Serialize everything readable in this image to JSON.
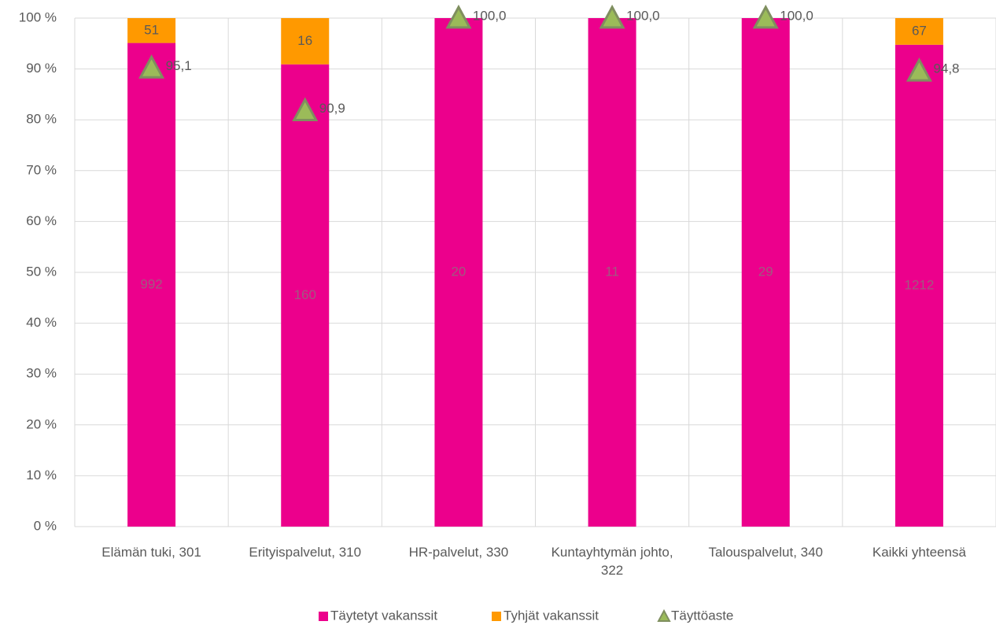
{
  "chart_data": {
    "type": "percent_stacked_bar",
    "categories": [
      "Elämän tuki, 301",
      "Erityispalvelut, 310",
      "HR-palvelut, 330",
      "Kuntayhtymän johto, 322",
      "Talouspalvelut, 340",
      "Kaikki yhteensä"
    ],
    "series": [
      {
        "name": "Täytetyt vakanssit",
        "color": "#ec008c",
        "values": [
          992,
          160,
          20,
          11,
          29,
          1212
        ]
      },
      {
        "name": "Tyhjät vakanssit",
        "color": "#ff9900",
        "values": [
          51,
          16,
          0,
          0,
          0,
          67
        ]
      },
      {
        "name": "Täyttöaste",
        "color": "#9bbb59",
        "type": "marker",
        "axis": "y2",
        "values": [
          95.1,
          90.9,
          100.0,
          100.0,
          100.0,
          94.8
        ],
        "value_labels": [
          "95,1",
          "90,9",
          "100,0",
          "100,0",
          "100,0",
          "94,8"
        ]
      }
    ],
    "ylim": [
      0,
      100
    ],
    "yticks": [
      {
        "value": 0,
        "label": "0 %"
      },
      {
        "value": 10,
        "label": "10 %"
      },
      {
        "value": 20,
        "label": "20 %"
      },
      {
        "value": 30,
        "label": "30 %"
      },
      {
        "value": 40,
        "label": "40 %"
      },
      {
        "value": 50,
        "label": "50 %"
      },
      {
        "value": 60,
        "label": "60 %"
      },
      {
        "value": 70,
        "label": "70 %"
      },
      {
        "value": 80,
        "label": "80 %"
      },
      {
        "value": 90,
        "label": "90 %"
      },
      {
        "value": 100,
        "label": "100 %"
      }
    ],
    "y2lim": [
      50,
      100
    ],
    "grid": true,
    "legend": "bottom"
  }
}
